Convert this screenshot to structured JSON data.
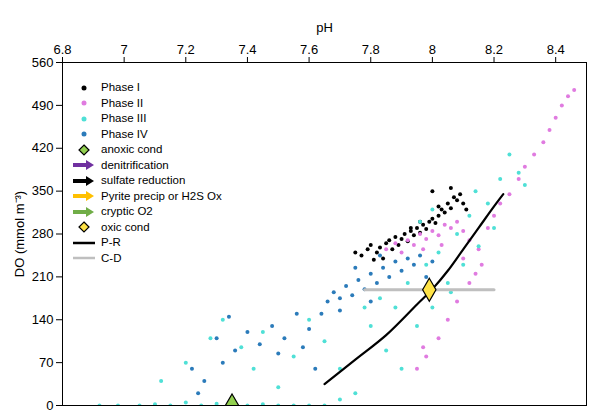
{
  "chart_data": {
    "type": "scatter",
    "x_label": "pH",
    "y_label": "DO (mmol m⁻³)",
    "xlim": [
      6.8,
      8.5
    ],
    "xticks": [
      6.8,
      7,
      7.2,
      7.4,
      7.6,
      7.8,
      8,
      8.2,
      8.4
    ],
    "ylim": [
      0,
      560
    ],
    "yticks": [
      0,
      70,
      140,
      210,
      280,
      350,
      420,
      490,
      560
    ],
    "grid": false,
    "legend": "top-left",
    "series": [
      {
        "name": "Phase I",
        "color": "#000000",
        "marker": "circle",
        "x": [
          7.75,
          7.77,
          7.79,
          7.8,
          7.82,
          7.83,
          7.85,
          7.86,
          7.87,
          7.88,
          7.9,
          7.91,
          7.92,
          7.93,
          7.94,
          7.95,
          7.96,
          7.97,
          7.98,
          7.99,
          8.0,
          8.01,
          8.02,
          8.03,
          8.04,
          8.05,
          8.06,
          8.07,
          8.08,
          8.09,
          8.1,
          8.11,
          7.84,
          7.89,
          7.96,
          8.02,
          8.06,
          7.81,
          7.93,
          8.0
        ],
        "y": [
          250,
          245,
          255,
          262,
          250,
          258,
          265,
          270,
          255,
          275,
          272,
          280,
          268,
          285,
          278,
          290,
          282,
          295,
          288,
          300,
          305,
          298,
          310,
          320,
          315,
          330,
          322,
          340,
          335,
          345,
          330,
          320,
          240,
          262,
          300,
          325,
          355,
          238,
          290,
          350
        ]
      },
      {
        "name": "Phase II",
        "color": "#e07be0",
        "marker": "circle",
        "x": [
          7.85,
          7.88,
          7.9,
          7.92,
          7.94,
          7.96,
          7.98,
          8.0,
          8.02,
          8.04,
          8.06,
          8.08,
          8.1,
          7.97,
          8.03,
          8.12,
          8.15,
          8.18,
          8.2,
          8.22,
          8.25,
          8.28,
          8.3,
          8.33,
          8.36,
          8.38,
          8.4,
          8.42,
          8.44,
          8.46,
          8.16,
          8.12,
          8.08,
          8.05,
          8.02,
          7.98,
          7.95,
          7.97,
          8.1,
          8.14
        ],
        "y": [
          255,
          265,
          250,
          270,
          262,
          280,
          272,
          285,
          278,
          295,
          290,
          300,
          285,
          255,
          262,
          270,
          255,
          290,
          310,
          330,
          345,
          370,
          390,
          410,
          430,
          450,
          470,
          490,
          505,
          515,
          230,
          200,
          170,
          140,
          110,
          80,
          60,
          95,
          240,
          215
        ]
      },
      {
        "name": "Phase III",
        "color": "#4fe0d6",
        "marker": "circle",
        "x": [
          6.92,
          6.98,
          7.05,
          7.1,
          7.15,
          7.2,
          7.25,
          7.3,
          7.4,
          7.45,
          7.5,
          7.55,
          7.6,
          7.12,
          7.2,
          7.28,
          7.32,
          7.38,
          7.42,
          7.45,
          7.5,
          7.55,
          7.6,
          7.65,
          7.7,
          7.75,
          7.8,
          7.85,
          7.88,
          7.9,
          7.92,
          7.95,
          7.98,
          8.0,
          8.02,
          8.05,
          8.08,
          8.1,
          8.12,
          8.15,
          8.18,
          8.2,
          8.22,
          8.25,
          8.28,
          8.3,
          8.14,
          8.0,
          7.96,
          7.7,
          7.65,
          7.83,
          8.06,
          7.78
        ],
        "y": [
          0,
          0,
          0,
          2,
          0,
          5,
          0,
          3,
          0,
          2,
          0,
          0,
          0,
          40,
          70,
          110,
          140,
          95,
          60,
          120,
          30,
          80,
          140,
          105,
          60,
          20,
          130,
          90,
          160,
          60,
          200,
          130,
          230,
          160,
          250,
          200,
          280,
          230,
          310,
          260,
          330,
          290,
          370,
          410,
          380,
          360,
          350,
          320,
          300,
          10,
          0,
          175,
          185,
          160
        ]
      },
      {
        "name": "Phase IV",
        "color": "#2b7bba",
        "marker": "circle",
        "x": [
          7.66,
          7.68,
          7.7,
          7.72,
          7.74,
          7.76,
          7.78,
          7.8,
          7.82,
          7.84,
          7.86,
          7.88,
          7.9,
          7.92,
          7.94,
          7.96,
          7.75,
          7.83,
          7.7,
          7.8,
          7.64,
          7.6,
          7.56,
          7.52,
          7.48,
          7.44,
          7.4,
          7.36,
          7.32,
          7.3,
          7.26,
          7.22,
          7.24,
          7.34,
          7.5,
          7.58,
          7.62,
          7.98,
          8.0
        ],
        "y": [
          170,
          185,
          175,
          195,
          180,
          205,
          190,
          215,
          200,
          225,
          210,
          235,
          220,
          240,
          230,
          245,
          225,
          245,
          155,
          170,
          150,
          125,
          150,
          110,
          130,
          100,
          120,
          90,
          70,
          110,
          40,
          60,
          20,
          145,
          85,
          95,
          60,
          210,
          235
        ]
      },
      {
        "name": "anoxic cond",
        "color": "#92d050",
        "marker": "diamond",
        "x": [
          7.35
        ],
        "y": [
          0
        ]
      },
      {
        "name": "denitrification",
        "color": "#7030a0",
        "marker": "arrow",
        "x": [],
        "y": []
      },
      {
        "name": "sulfate reduction",
        "color": "#000000",
        "marker": "arrow",
        "x": [],
        "y": []
      },
      {
        "name": "Pyrite precip or H2S Ox",
        "color": "#ffc000",
        "marker": "arrow",
        "x": [],
        "y": []
      },
      {
        "name": "cryptic O2",
        "color": "#70ad47",
        "marker": "arrow",
        "x": [],
        "y": []
      },
      {
        "name": "oxic cond",
        "color": "#ffe347",
        "marker": "diamond",
        "x": [
          7.99
        ],
        "y": [
          189
        ]
      },
      {
        "name": "P-R",
        "color": "#000000",
        "type": "line",
        "x": [
          7.65,
          7.75,
          7.85,
          7.95,
          8.0,
          8.05,
          8.1,
          8.15,
          8.2,
          8.23
        ],
        "y": [
          35,
          75,
          115,
          165,
          190,
          220,
          255,
          290,
          325,
          345
        ]
      },
      {
        "name": "C-D",
        "color": "#bfbfbf",
        "type": "line",
        "x": [
          7.78,
          8.2
        ],
        "y": [
          189,
          189
        ]
      }
    ]
  }
}
